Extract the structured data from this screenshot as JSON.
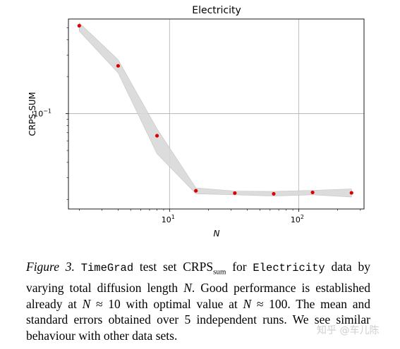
{
  "chart_data": {
    "type": "scatter",
    "title": "Electricity",
    "xlabel": "N",
    "ylabel": "CRPS-SUM",
    "xscale": "log",
    "yscale": "log",
    "xlim": [
      1.65,
      320
    ],
    "ylim": [
      0.0167,
      0.59
    ],
    "grid": true,
    "x_ticks": [
      {
        "value": 10,
        "base": "10",
        "exp": "1"
      },
      {
        "value": 100,
        "base": "10",
        "exp": "2"
      }
    ],
    "y_ticks": [
      {
        "value": 0.1,
        "base": "10",
        "exp": "−1"
      }
    ],
    "series": [
      {
        "x": [
          2,
          4,
          8,
          16,
          32,
          64,
          128,
          256
        ],
        "y": [
          0.52,
          0.245,
          0.066,
          0.0235,
          0.0225,
          0.0222,
          0.0228,
          0.0226
        ],
        "y_lower": [
          0.47,
          0.215,
          0.047,
          0.0222,
          0.0218,
          0.0213,
          0.0218,
          0.0209
        ],
        "y_upper": [
          0.55,
          0.275,
          0.075,
          0.0248,
          0.0234,
          0.0232,
          0.0237,
          0.0243
        ]
      }
    ],
    "colors": {
      "points": "#dd0000",
      "band": "#d9d9d9",
      "grid": "#b0b0b0"
    }
  },
  "caption": {
    "label": "Figure 3.",
    "model": "TimeGrad",
    "t1": " test set CRPS",
    "sub": "sum",
    "t2": " for ",
    "dataset": "Electricity",
    "t3": " data by varying total diffusion length ",
    "var1": "N",
    "t4": ". Good performance is established already at ",
    "var2": "N",
    "t5": " ≈ 10 with optimal value at ",
    "var3": "N",
    "t6": " ≈ 100. The mean and standard errors obtained over 5 independent runs. We see similar behaviour with other data sets."
  },
  "watermark": "知乎 @车儿陈"
}
